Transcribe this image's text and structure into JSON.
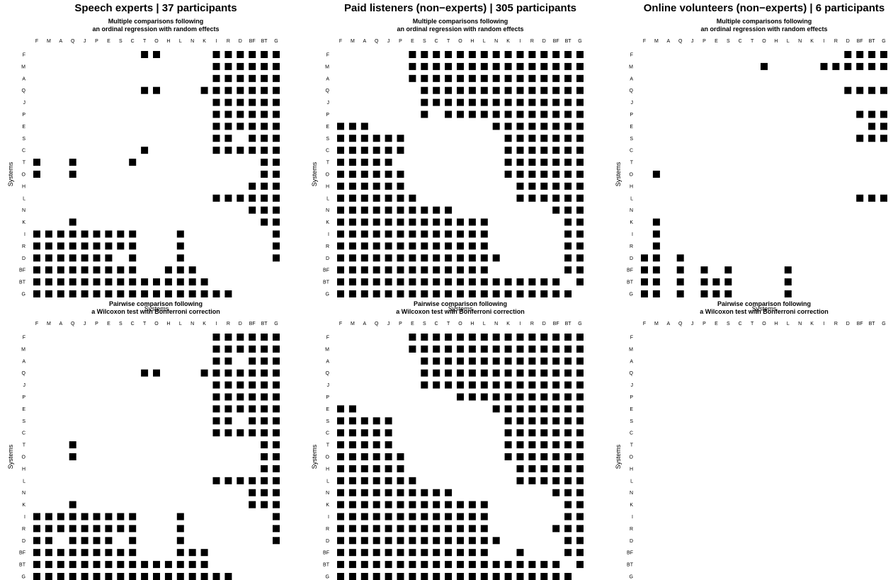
{
  "figure": {
    "panel_order_labels": [
      "F",
      "M",
      "A",
      "Q",
      "J",
      "P",
      "E",
      "S",
      "C",
      "T",
      "O",
      "H",
      "L",
      "N",
      "K",
      "I",
      "R",
      "D",
      "BF",
      "BT",
      "G"
    ]
  },
  "columns": [
    {
      "title": "Speech experts | 37 participants",
      "subtitle_top": [
        "Multiple comparisons following",
        "an ordinal regression with random effects"
      ],
      "subtitle_bottom": [
        "Pairwise comparison following",
        "a Wilcoxon test with Bonferroni correction"
      ]
    },
    {
      "title": "Paid listeners (non−experts) | 305 participants",
      "subtitle_top": [
        "Multiple comparisons following",
        "an ordinal regression with random effects"
      ],
      "subtitle_bottom": [
        "Pairwise comparison following",
        "a Wilcoxon test with Bonferroni correction"
      ]
    },
    {
      "title": "Online volunteers (non−experts) | 6 participants",
      "subtitle_top": [
        "Multiple comparisons following",
        "an ordinal regression with random effects"
      ],
      "subtitle_bottom": [
        "Pairwise comparison following",
        "a Wilcoxon test with Bonferroni correction"
      ]
    }
  ],
  "chart_data": [
    {
      "type": "heatmap",
      "title": "Speech experts | 37 participants",
      "subtitle": "Multiple comparisons following an ordinal regression with random effects",
      "xlabel": "Systems",
      "ylabel": "Systems",
      "x": [
        "F",
        "M",
        "A",
        "Q",
        "J",
        "P",
        "E",
        "S",
        "C",
        "T",
        "O",
        "H",
        "L",
        "N",
        "K",
        "I",
        "R",
        "D",
        "BF",
        "BT",
        "G"
      ],
      "y": [
        "F",
        "M",
        "A",
        "Q",
        "J",
        "P",
        "E",
        "S",
        "C",
        "T",
        "O",
        "H",
        "L",
        "N",
        "K",
        "I",
        "R",
        "D",
        "BF",
        "BT",
        "G"
      ],
      "cells": [
        "000000000110000111111",
        "000000000000000111111",
        "000000000000000111111",
        "000000000110001111111",
        "000000000000000111111",
        "000000000000000111111",
        "000000000000000111111",
        "000000000000000110111",
        "000000000100000111111",
        "100100001000000000011",
        "100100000000000000011",
        "000000000000000000111",
        "000000000000000111111",
        "000000000000000000111",
        "000100000000000000011",
        "111111111000100000001",
        "111111111000100000001",
        "111111101000100000001",
        "111111111001110000000",
        "111111111111111000000",
        "111111111111111110000"
      ]
    },
    {
      "type": "heatmap",
      "title": "Paid listeners (non−experts) | 305 participants",
      "subtitle": "Multiple comparisons following an ordinal regression with random effects",
      "xlabel": "Systems",
      "ylabel": "Systems",
      "x": [
        "F",
        "M",
        "A",
        "Q",
        "J",
        "P",
        "E",
        "S",
        "C",
        "T",
        "O",
        "H",
        "L",
        "N",
        "K",
        "I",
        "R",
        "D",
        "BF",
        "BT",
        "G"
      ],
      "y": [
        "F",
        "M",
        "A",
        "Q",
        "J",
        "P",
        "E",
        "S",
        "C",
        "T",
        "O",
        "H",
        "L",
        "N",
        "K",
        "I",
        "R",
        "D",
        "BF",
        "BT",
        "G"
      ],
      "cells": [
        "000000111111111111111",
        "000000111111111111111",
        "000000111111111111111",
        "000000011111111111111",
        "000000011111111111111",
        "000000010111111111111",
        "111000000000011111111",
        "111111000000001111111",
        "111111000000001111111",
        "111110000000001111111",
        "111111000000001111111",
        "111111000000000111111",
        "111111100000000111111",
        "111111111100000000111",
        "111111111111100000011",
        "111111111111100000011",
        "111111111111100000011",
        "111111111111110000011",
        "111111111111100000011",
        "111111111111111111101",
        "111111111111111111110"
      ]
    },
    {
      "type": "heatmap",
      "title": "Online volunteers (non−experts) | 6 participants",
      "subtitle": "Multiple comparisons following an ordinal regression with random effects",
      "xlabel": "Systems",
      "ylabel": "Systems",
      "x": [
        "F",
        "M",
        "A",
        "Q",
        "J",
        "P",
        "E",
        "S",
        "C",
        "T",
        "O",
        "H",
        "L",
        "N",
        "K",
        "I",
        "R",
        "D",
        "BF",
        "BT",
        "G"
      ],
      "y": [
        "F",
        "M",
        "A",
        "Q",
        "J",
        "P",
        "E",
        "S",
        "C",
        "T",
        "O",
        "H",
        "L",
        "N",
        "K",
        "I",
        "R",
        "D",
        "BF",
        "BT",
        "G"
      ],
      "cells": [
        "000000000000000001111",
        "000000000010000111111",
        "000000000000000000000",
        "000000000000000001111",
        "000000000000000000000",
        "000000000000000000111",
        "000000000000000000011",
        "000000000000000000111",
        "000000000000000000000",
        "000000000000000000000",
        "010000000000000000000",
        "000000000000000000000",
        "000000000000000000111",
        "000000000000000000000",
        "010000000000000000000",
        "010000000000000000000",
        "010000000000000000000",
        "110100000000000000000",
        "110101010000100000000",
        "110101110000100000000",
        "110101110000100000000"
      ]
    },
    {
      "type": "heatmap",
      "title": "Speech experts | 37 participants",
      "subtitle": "Pairwise comparison following a Wilcoxon test with Bonferroni correction",
      "xlabel": "Systems",
      "ylabel": "Systems",
      "x": [
        "F",
        "M",
        "A",
        "Q",
        "J",
        "P",
        "E",
        "S",
        "C",
        "T",
        "O",
        "H",
        "L",
        "N",
        "K",
        "I",
        "R",
        "D",
        "BF",
        "BT",
        "G"
      ],
      "y": [
        "F",
        "M",
        "A",
        "Q",
        "J",
        "P",
        "E",
        "S",
        "C",
        "T",
        "O",
        "H",
        "L",
        "N",
        "K",
        "I",
        "R",
        "D",
        "BF",
        "BT",
        "G"
      ],
      "cells": [
        "000000000000000111111",
        "000000000000000111111",
        "000000000000000110111",
        "000000000110001111111",
        "000000000000000111111",
        "000000000000000111111",
        "000000000000000111111",
        "000000000000000110111",
        "000000000000000111111",
        "000100000000000000011",
        "000100000000000000011",
        "000000000000000000011",
        "000000000000000111111",
        "000000000000000000111",
        "000100000000000000111",
        "111111111000100000001",
        "111111111000100000001",
        "110111101000100000001",
        "111111111000111000000",
        "111111111111111000000",
        "111111111111111110000"
      ]
    },
    {
      "type": "heatmap",
      "title": "Paid listeners (non−experts) | 305 participants",
      "subtitle": "Pairwise comparison following a Wilcoxon test with Bonferroni correction",
      "xlabel": "Systems",
      "ylabel": "Systems",
      "x": [
        "F",
        "M",
        "A",
        "Q",
        "J",
        "P",
        "E",
        "S",
        "C",
        "T",
        "O",
        "H",
        "L",
        "N",
        "K",
        "I",
        "R",
        "D",
        "BF",
        "BT",
        "G"
      ],
      "y": [
        "F",
        "M",
        "A",
        "Q",
        "J",
        "P",
        "E",
        "S",
        "C",
        "T",
        "O",
        "H",
        "L",
        "N",
        "K",
        "I",
        "R",
        "D",
        "BF",
        "BT",
        "G"
      ],
      "cells": [
        "000000111111111111111",
        "000000111111111111111",
        "000000011111111111111",
        "000000011111111111111",
        "000000011111111111111",
        "000000000011111111111",
        "110000000000011111111",
        "111110000000001111111",
        "111110000000001111111",
        "111110000000001111111",
        "111111000000001111111",
        "111111000000000111111",
        "111111100000000111111",
        "111111111100000000111",
        "111111111111100000011",
        "111111111111100000011",
        "111111111111100000111",
        "111111111111110000011",
        "111111111111100100011",
        "111111111111111111101",
        "111111111111111111110"
      ]
    },
    {
      "type": "heatmap",
      "title": "Online volunteers (non−experts) | 6 participants",
      "subtitle": "Pairwise comparison following a Wilcoxon test with Bonferroni correction",
      "xlabel": "Systems",
      "ylabel": "Systems",
      "x": [
        "F",
        "M",
        "A",
        "Q",
        "J",
        "P",
        "E",
        "S",
        "C",
        "T",
        "O",
        "H",
        "L",
        "N",
        "K",
        "I",
        "R",
        "D",
        "BF",
        "BT",
        "G"
      ],
      "y": [
        "F",
        "M",
        "A",
        "Q",
        "J",
        "P",
        "E",
        "S",
        "C",
        "T",
        "O",
        "H",
        "L",
        "N",
        "K",
        "I",
        "R",
        "D",
        "BF",
        "BT",
        "G"
      ],
      "cells": [
        "000000000000000000000",
        "000000000000000000000",
        "000000000000000000000",
        "000000000000000000000",
        "000000000000000000000",
        "000000000000000000000",
        "000000000000000000000",
        "000000000000000000000",
        "000000000000000000000",
        "000000000000000000000",
        "000000000000000000000",
        "000000000000000000000",
        "000000000000000000000",
        "000000000000000000000",
        "000000000000000000000",
        "000000000000000000000",
        "000000000000000000000",
        "000000000000000000000",
        "000000000000000000000",
        "000000000000000000000",
        "000000000000000000000"
      ]
    }
  ]
}
